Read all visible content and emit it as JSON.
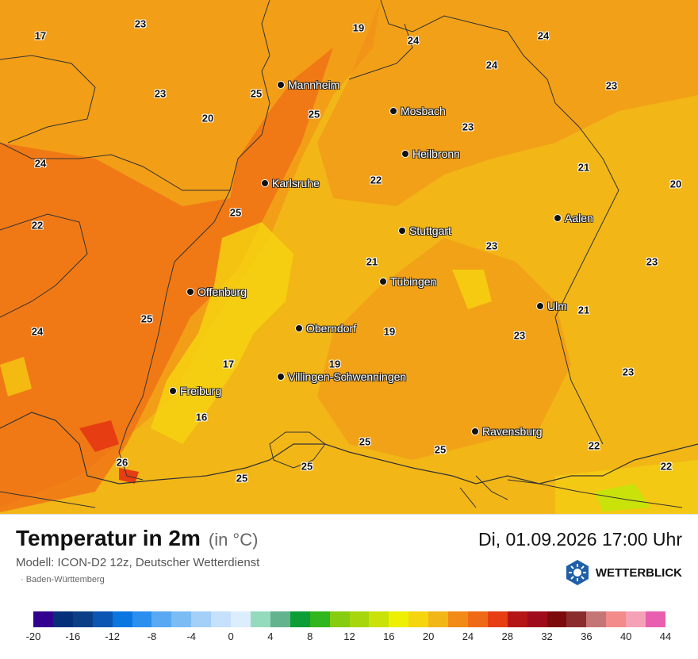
{
  "map": {
    "cities": [
      {
        "name": "Mannheim"
      },
      {
        "name": "Mosbach"
      },
      {
        "name": "Heilbronn"
      },
      {
        "name": "Karlsruhe"
      },
      {
        "name": "Stuttgart"
      },
      {
        "name": "Aalen"
      },
      {
        "name": "Tübingen"
      },
      {
        "name": "Offenburg"
      },
      {
        "name": "Ulm"
      },
      {
        "name": "Oberndorf"
      },
      {
        "name": "Villingen-Schwenningen"
      },
      {
        "name": "Freiburg"
      },
      {
        "name": "Ravensburg"
      }
    ],
    "values": [
      "17",
      "23",
      "19",
      "24",
      "24",
      "24",
      "23",
      "25",
      "23",
      "20",
      "25",
      "23",
      "24",
      "21",
      "20",
      "22",
      "25",
      "22",
      "23",
      "21",
      "21",
      "24",
      "25",
      "19",
      "23",
      "19",
      "17",
      "23",
      "23",
      "16",
      "25",
      "25",
      "22",
      "26",
      "25",
      "25",
      "22"
    ]
  },
  "footer": {
    "title": "Temperatur in 2m",
    "unit": "(in °C)",
    "datetime": "Di, 01.09.2026 17:00 Uhr",
    "model": "Modell: ICON-D2 12z, Deutscher Wetterdienst",
    "region": "· Baden-Württemberg",
    "brand": "WETTERBLICK"
  },
  "legend": {
    "colors": [
      "#33018f",
      "#062f7a",
      "#0a3f86",
      "#0b55b3",
      "#0a76e0",
      "#2b8ff0",
      "#58a8f3",
      "#7bbcf5",
      "#a3cff8",
      "#c5e1fb",
      "#dcedfc",
      "#94dbbd",
      "#63b38f",
      "#0e9e38",
      "#31b61d",
      "#86cc11",
      "#a6d60b",
      "#c9e20a",
      "#eef003",
      "#f5d510",
      "#f2b617",
      "#f28a17",
      "#ef6a17",
      "#e63d12",
      "#b51515",
      "#a00b1b",
      "#7c0c0c",
      "#8a2c2c",
      "#c47676",
      "#f38b8b",
      "#f5a1b6",
      "#e85fb0"
    ],
    "ticks": [
      "-20",
      "-16",
      "-12",
      "-8",
      "-4",
      "0",
      "4",
      "8",
      "12",
      "16",
      "20",
      "24",
      "28",
      "32",
      "36",
      "40",
      "44"
    ]
  }
}
